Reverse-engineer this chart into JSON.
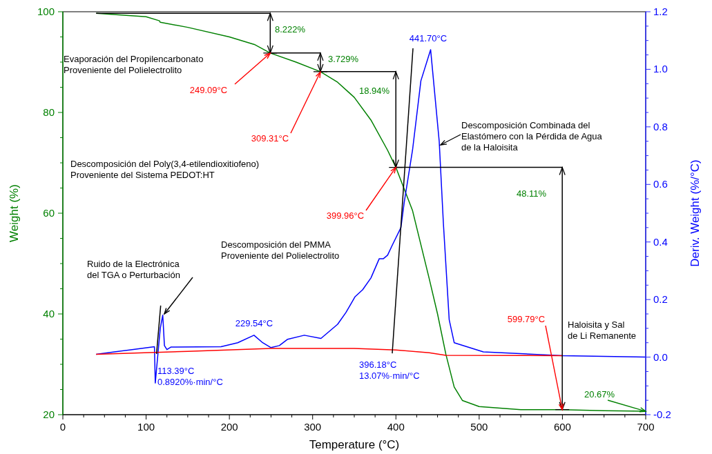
{
  "chart_data": {
    "type": "line",
    "xlabel": "Temperature (°C)",
    "ylabel": "Weight (%)",
    "y2label": "Deriv. Weight (%/°C)",
    "xlim": [
      0,
      700
    ],
    "ylim": [
      20,
      100
    ],
    "y2lim": [
      -0.2,
      1.2
    ],
    "xticks": [
      0,
      {
        "value": 25,
        "label": null
      },
      {
        "value": 50,
        "label": null
      },
      {
        "value": 75,
        "label": null
      },
      100,
      {
        "value": 125,
        "label": null
      },
      {
        "value": 150,
        "label": null
      },
      {
        "value": 175,
        "label": null
      },
      200,
      {
        "value": 225,
        "label": null
      },
      {
        "value": 250,
        "label": null
      },
      {
        "value": 275,
        "label": null
      },
      300,
      {
        "value": 325,
        "label": null
      },
      {
        "value": 350,
        "label": null
      },
      {
        "value": 375,
        "label": null
      },
      400,
      {
        "value": 425,
        "label": null
      },
      {
        "value": 450,
        "label": null
      },
      {
        "value": 475,
        "label": null
      },
      500,
      {
        "value": 525,
        "label": null
      },
      {
        "value": 550,
        "label": null
      },
      {
        "value": 575,
        "label": null
      },
      600,
      {
        "value": 625,
        "label": null
      },
      {
        "value": 650,
        "label": null
      },
      {
        "value": 675,
        "label": null
      },
      700
    ],
    "yticks": [
      20,
      {
        "value": 25,
        "label": null
      },
      {
        "value": 30,
        "label": null
      },
      {
        "value": 35,
        "label": null
      },
      40,
      {
        "value": 45,
        "label": null
      },
      {
        "value": 50,
        "label": null
      },
      {
        "value": 55,
        "label": null
      },
      60,
      {
        "value": 65,
        "label": null
      },
      {
        "value": 70,
        "label": null
      },
      {
        "value": 75,
        "label": null
      },
      80,
      {
        "value": 85,
        "label": null
      },
      {
        "value": 90,
        "label": null
      },
      {
        "value": 95,
        "label": null
      },
      100
    ],
    "y2ticks": [
      -0.2,
      {
        "value": -0.15,
        "label": null
      },
      {
        "value": -0.1,
        "label": null
      },
      {
        "value": -0.05,
        "label": null
      },
      {
        "value": 0,
        "label": "0.0"
      },
      {
        "value": 0.05,
        "label": null
      },
      {
        "value": 0.1,
        "label": null
      },
      {
        "value": 0.15,
        "label": null
      },
      0.2,
      {
        "value": 0.25,
        "label": null
      },
      {
        "value": 0.3,
        "label": null
      },
      {
        "value": 0.35,
        "label": null
      },
      0.4,
      {
        "value": 0.45,
        "label": null
      },
      {
        "value": 0.5,
        "label": null
      },
      {
        "value": 0.55,
        "label": null
      },
      0.6,
      {
        "value": 0.65,
        "label": null
      },
      {
        "value": 0.7,
        "label": null
      },
      {
        "value": 0.75,
        "label": null
      },
      0.8,
      {
        "value": 0.85,
        "label": null
      },
      {
        "value": 0.9,
        "label": null
      },
      {
        "value": 0.95,
        "label": null
      },
      {
        "value": 1,
        "label": "1.0"
      },
      {
        "value": 1.05,
        "label": null
      },
      {
        "value": 1.1,
        "label": null
      },
      {
        "value": 1.15,
        "label": null
      },
      1.2
    ],
    "grid": false,
    "marker": "none",
    "line_style": "solid",
    "series": [
      {
        "color": "#008000",
        "x": [
          40,
          100,
          116,
          117,
          150,
          200,
          230,
          249.09,
          280,
          309.31,
          330,
          350,
          370,
          390,
          399.96,
          420,
          440,
          450,
          460,
          470,
          480,
          500,
          550,
          599.79,
          650,
          700
        ],
        "values": [
          99.7,
          99.0,
          98.2,
          97.9,
          96.9,
          95.0,
          93.5,
          91.8,
          90.0,
          88.1,
          86.0,
          83.0,
          78.5,
          72.5,
          69.1,
          60.5,
          47,
          40,
          32,
          25.5,
          22.8,
          21.6,
          21.0,
          21.0,
          20.8,
          20.7
        ]
      },
      {
        "color": "#0000ff",
        "axis": "y2",
        "x": [
          40,
          80,
          110,
          111,
          117,
          120,
          122,
          125,
          130,
          190,
          210,
          229.54,
          240,
          250,
          260,
          270,
          290,
          310,
          330,
          340,
          351,
          360,
          370,
          380,
          385,
          390,
          395,
          406,
          410,
          420,
          430,
          441.7,
          452,
          457,
          464,
          470,
          505,
          600,
          700
        ],
        "values": [
          0.01,
          0.025,
          0.036,
          -0.09,
          0.1,
          0.146,
          0.04,
          0.026,
          0.035,
          0.036,
          0.05,
          0.076,
          0.05,
          0.033,
          0.04,
          0.062,
          0.076,
          0.065,
          0.114,
          0.155,
          0.21,
          0.234,
          0.275,
          0.342,
          0.342,
          0.354,
          0.385,
          0.45,
          0.538,
          0.72,
          0.96,
          1.068,
          0.75,
          0.466,
          0.13,
          0.05,
          0.018,
          0.005,
          0.0
        ]
      },
      {
        "color": "#ff0000",
        "axis": "y2",
        "x": [
          40,
          150,
          250,
          350,
          400,
          440,
          460,
          600
        ],
        "values": [
          0.01,
          0.02,
          0.03,
          0.03,
          0.025,
          0.015,
          0.006,
          0.005
        ]
      },
      {
        "color": "#000000",
        "axis": "y2",
        "x": [
          112.5,
          117.5
        ],
        "values": [
          0.011,
          0.179
        ]
      },
      {
        "color": "#000000",
        "axis": "y2",
        "x": [
          395.6,
          420.5
        ],
        "values": [
          0.013,
          1.073
        ]
      },
      {
        "color": "#000000",
        "x": [
          40,
          249.09,
          249.09
        ],
        "values": [
          99.7,
          99.7,
          91.8
        ]
      },
      {
        "color": "#000000",
        "x": [
          249.09,
          309.31,
          309.31
        ],
        "values": [
          91.8,
          91.8,
          88.1
        ]
      },
      {
        "color": "#000000",
        "x": [
          309.31,
          399.96,
          399.96
        ],
        "values": [
          88.1,
          88.1,
          69.1
        ]
      },
      {
        "color": "#000000",
        "x": [
          399.96,
          599.79,
          599.79
        ],
        "values": [
          69.1,
          69.1,
          21.0
        ]
      }
    ],
    "annotations": [
      "Evaporación del Propilencarbonato\nProveniente del Polielectrolito",
      "Descomposición del Poly(3,4-etilendioxitiofeno)\nProveniente del Sistema PEDOT:HT",
      "Descomposición del PMMA\nProveniente del Polielectrolito",
      "Ruido de la Electrónica\ndel TGA o Perturbación",
      "Descomposición Combinada del\nElastómero con la Pérdida de Agua\nde la Haloisita",
      "Haloisita y Sal\nde Li Remanente",
      "8.222%",
      "3.729%",
      "18.94%",
      "48.11%",
      {
        "text": "249.09°C",
        "x": 249.09,
        "y": 91.78
      },
      {
        "text": "309.31°C",
        "x": 309.31,
        "y": 88.05
      },
      {
        "text": "399.96°C",
        "x": 399.96,
        "y": 69.1
      },
      {
        "text": "599.79°C",
        "x": 599.79,
        "y": 20.98
      },
      {
        "text": "20.67%",
        "x": 700,
        "y": 20.67
      },
      "441.70°C",
      "229.54°C",
      "113.39°C\n0.8920%·min/°C",
      "396.18°C\n13.07%·min/°C"
    ]
  }
}
